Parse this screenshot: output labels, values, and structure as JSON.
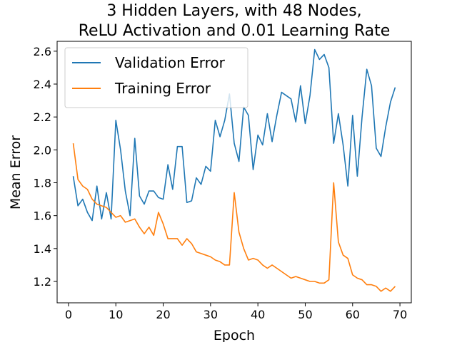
{
  "chart_data": {
    "type": "line",
    "title": "3 Hidden Layers, with 48 Nodes,",
    "subtitle": "ReLU Activation and 0.01 Learning Rate",
    "xlabel": "Epoch",
    "ylabel": "Mean Error",
    "xlim": [
      -2.4,
      72.4
    ],
    "ylim": [
      1.07,
      2.66
    ],
    "xticks": [
      0,
      10,
      20,
      30,
      40,
      50,
      60,
      70
    ],
    "yticks": [
      1.2,
      1.4,
      1.6,
      1.8,
      2.0,
      2.2,
      2.4,
      2.6
    ],
    "grid": false,
    "legend_position": "top-left",
    "series": [
      {
        "name": "Validation Error",
        "color": "#1f77b4",
        "x": [
          1,
          2,
          3,
          4,
          5,
          6,
          7,
          8,
          9,
          10,
          11,
          12,
          13,
          14,
          15,
          16,
          17,
          18,
          19,
          20,
          21,
          22,
          23,
          24,
          25,
          26,
          27,
          28,
          29,
          30,
          31,
          32,
          33,
          34,
          35,
          36,
          37,
          38,
          39,
          40,
          41,
          42,
          43,
          44,
          45,
          46,
          47,
          48,
          49,
          50,
          51,
          52,
          53,
          54,
          55,
          56,
          57,
          58,
          59,
          60,
          61,
          62,
          63,
          64,
          65,
          66,
          67,
          68,
          69
        ],
        "values": [
          1.84,
          1.66,
          1.7,
          1.62,
          1.57,
          1.78,
          1.58,
          1.74,
          1.58,
          2.18,
          2.0,
          1.75,
          1.6,
          2.07,
          1.72,
          1.67,
          1.75,
          1.75,
          1.71,
          1.7,
          1.91,
          1.76,
          2.02,
          2.02,
          1.68,
          1.69,
          1.83,
          1.79,
          1.9,
          1.87,
          2.18,
          2.08,
          2.18,
          2.34,
          2.04,
          1.93,
          2.26,
          2.21,
          1.88,
          2.09,
          2.03,
          2.22,
          2.05,
          2.21,
          2.35,
          2.33,
          2.31,
          2.17,
          2.39,
          2.16,
          2.33,
          2.61,
          2.55,
          2.58,
          2.5,
          2.04,
          2.22,
          2.03,
          1.78,
          2.21,
          1.84,
          2.2,
          2.49,
          2.39,
          2.01,
          1.96,
          2.14,
          2.29,
          2.38
        ]
      },
      {
        "name": "Training Error",
        "color": "#ff7f0e",
        "x": [
          1,
          2,
          3,
          4,
          5,
          6,
          7,
          8,
          9,
          10,
          11,
          12,
          13,
          14,
          15,
          16,
          17,
          18,
          19,
          20,
          21,
          22,
          23,
          24,
          25,
          26,
          27,
          28,
          29,
          30,
          31,
          32,
          33,
          34,
          35,
          36,
          37,
          38,
          39,
          40,
          41,
          42,
          43,
          44,
          45,
          46,
          47,
          48,
          49,
          50,
          51,
          52,
          53,
          54,
          55,
          56,
          57,
          58,
          59,
          60,
          61,
          62,
          63,
          64,
          65,
          66,
          67,
          68,
          69
        ],
        "values": [
          2.04,
          1.82,
          1.78,
          1.76,
          1.7,
          1.67,
          1.66,
          1.65,
          1.62,
          1.59,
          1.6,
          1.56,
          1.57,
          1.58,
          1.53,
          1.49,
          1.53,
          1.48,
          1.62,
          1.55,
          1.46,
          1.46,
          1.46,
          1.42,
          1.46,
          1.43,
          1.38,
          1.37,
          1.36,
          1.35,
          1.33,
          1.32,
          1.3,
          1.3,
          1.74,
          1.5,
          1.4,
          1.33,
          1.34,
          1.33,
          1.3,
          1.28,
          1.3,
          1.28,
          1.26,
          1.24,
          1.22,
          1.23,
          1.22,
          1.21,
          1.2,
          1.2,
          1.19,
          1.19,
          1.21,
          1.8,
          1.44,
          1.36,
          1.34,
          1.24,
          1.22,
          1.21,
          1.18,
          1.18,
          1.17,
          1.14,
          1.16,
          1.14,
          1.17
        ]
      }
    ]
  }
}
